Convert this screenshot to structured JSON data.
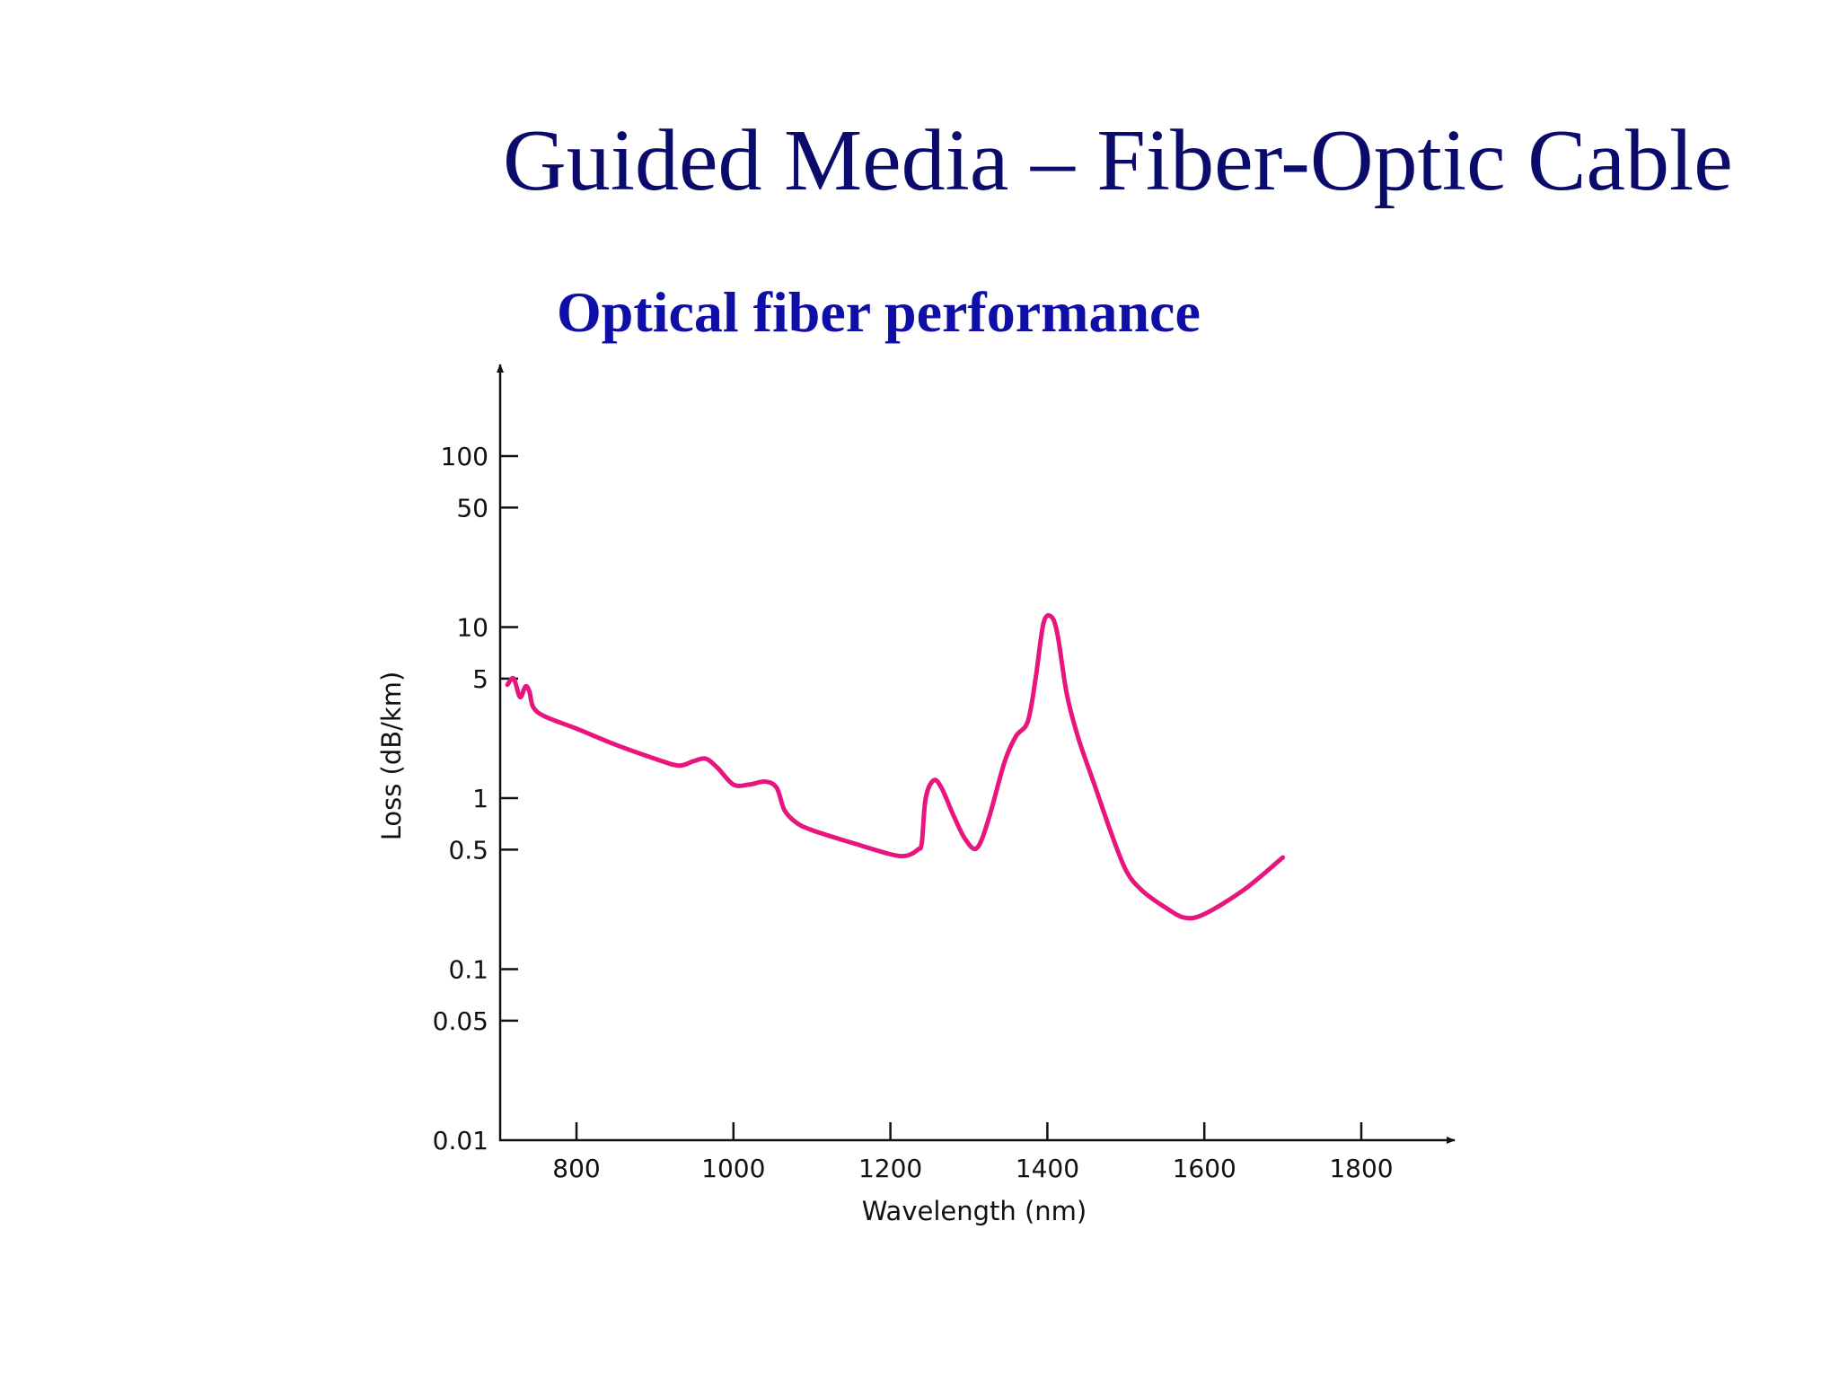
{
  "slide": {
    "title": "Guided Media – Fiber-Optic Cable",
    "subtitle": "Optical fiber performance"
  },
  "colors": {
    "title": "#0b0b6b",
    "subtitle": "#0f0fa8",
    "curve": "#e8157f",
    "axis": "#111111"
  },
  "chart_data": {
    "type": "line",
    "xlabel": "Wavelength (nm)",
    "ylabel": "Loss (dB/km)",
    "y_scale": "log",
    "x_ticks": [
      800,
      1000,
      1200,
      1400,
      1600,
      1800
    ],
    "y_ticks": [
      {
        "value": 100,
        "label": "100"
      },
      {
        "value": 50,
        "label": "50"
      },
      {
        "value": 10,
        "label": "10"
      },
      {
        "value": 5,
        "label": "5"
      },
      {
        "value": 1,
        "label": "1"
      },
      {
        "value": 0.5,
        "label": "0.5"
      },
      {
        "value": 0.1,
        "label": "0.1"
      },
      {
        "value": 0.05,
        "label": "0.05"
      },
      {
        "value": 0.01,
        "label": "0.01"
      }
    ],
    "xlim": [
      705,
      1825
    ],
    "ylim": [
      0.01,
      300
    ],
    "grid": false,
    "legend": "none",
    "series": [
      {
        "points": [
          [
            712,
            4.6
          ],
          [
            720,
            5.0
          ],
          [
            728,
            3.9
          ],
          [
            735,
            4.5
          ],
          [
            740,
            4.2
          ],
          [
            745,
            3.4
          ],
          [
            760,
            3.0
          ],
          [
            800,
            2.55
          ],
          [
            850,
            2.05
          ],
          [
            900,
            1.7
          ],
          [
            930,
            1.55
          ],
          [
            950,
            1.65
          ],
          [
            965,
            1.7
          ],
          [
            980,
            1.5
          ],
          [
            1000,
            1.2
          ],
          [
            1020,
            1.2
          ],
          [
            1040,
            1.25
          ],
          [
            1055,
            1.15
          ],
          [
            1065,
            0.85
          ],
          [
            1080,
            0.72
          ],
          [
            1100,
            0.65
          ],
          [
            1150,
            0.55
          ],
          [
            1200,
            0.47
          ],
          [
            1220,
            0.46
          ],
          [
            1235,
            0.5
          ],
          [
            1240,
            0.55
          ],
          [
            1245,
            1.0
          ],
          [
            1255,
            1.27
          ],
          [
            1265,
            1.15
          ],
          [
            1280,
            0.8
          ],
          [
            1295,
            0.58
          ],
          [
            1310,
            0.51
          ],
          [
            1325,
            0.75
          ],
          [
            1345,
            1.6
          ],
          [
            1360,
            2.3
          ],
          [
            1375,
            2.8
          ],
          [
            1385,
            5.0
          ],
          [
            1395,
            10.5
          ],
          [
            1405,
            11.5
          ],
          [
            1413,
            9.0
          ],
          [
            1425,
            4.0
          ],
          [
            1440,
            2.2
          ],
          [
            1460,
            1.2
          ],
          [
            1480,
            0.65
          ],
          [
            1500,
            0.38
          ],
          [
            1520,
            0.29
          ],
          [
            1550,
            0.23
          ],
          [
            1575,
            0.2
          ],
          [
            1600,
            0.21
          ],
          [
            1650,
            0.29
          ],
          [
            1700,
            0.45
          ]
        ]
      }
    ]
  }
}
